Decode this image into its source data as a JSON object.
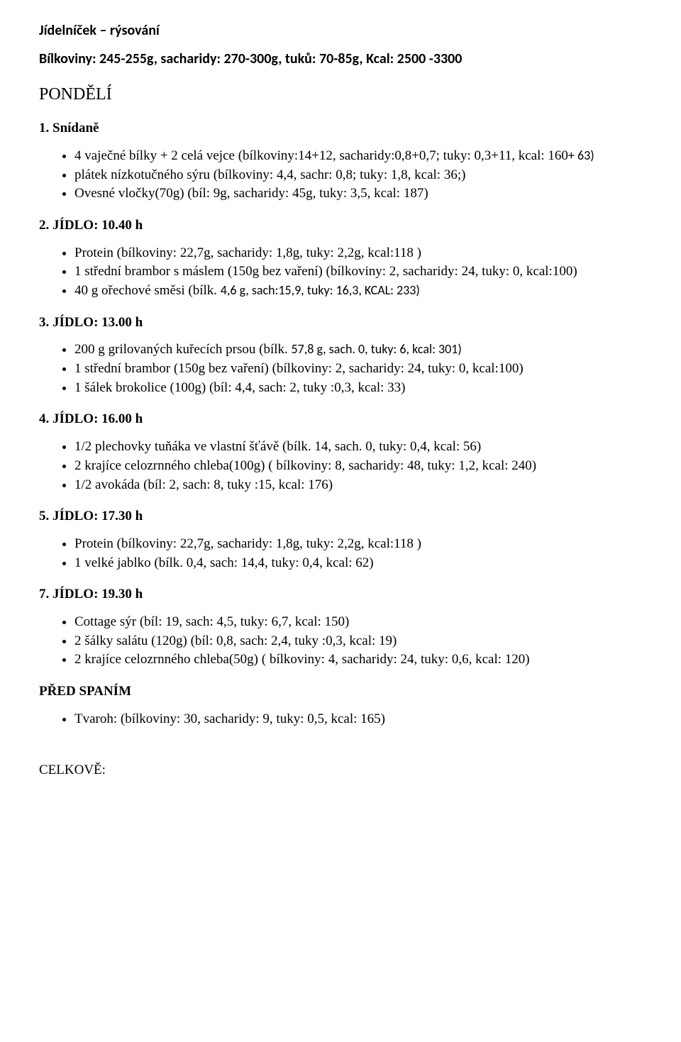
{
  "doc": {
    "title": "Jídelníček – rýsování",
    "subtitle": "Bílkoviny: 245-255g, sacharidy: 270-300g, tuků: 70-85g, Kcal: 2500 -3300",
    "day": "PONDĚLÍ",
    "total_label": "CELKOVĚ:"
  },
  "meals": [
    {
      "heading": "1. Snídaně",
      "items": [
        {
          "text_a": "4 vaječné bílky + 2 celá vejce (bílkoviny:14+12, sacharidy:0,8+0,7; tuky: 0,3+11, kcal: 160",
          "text_sans": "+ 63)"
        },
        {
          "text_a": "plátek nízkotučného sýru (bílkoviny: 4,4, sachr: 0,8; tuky: 1,8, kcal: 36;)"
        },
        {
          "text_a": "Ovesné vločky(70g) (bíl: 9g, sacharidy: 45g, tuky: 3,5, kcal: 187)"
        }
      ]
    },
    {
      "heading": "2. JÍDLO: 10.40 h",
      "items": [
        {
          "text_a": "Protein (bílkoviny: 22,7g, sacharidy: 1,8g, tuky: 2,2g, kcal:118 )"
        },
        {
          "text_a": "1 střední brambor s máslem (150g bez vaření) (bílkoviny: 2, sacharidy: 24, tuky: 0, kcal:100)"
        },
        {
          "text_a": "40 g ořechové směsi (bílk. ",
          "text_sans": "4,6 g, sach:15,9, tuky: 16,3, KCAL: 233)"
        }
      ]
    },
    {
      "heading": "3. JÍDLO: 13.00 h",
      "items": [
        {
          "text_a": "200 g grilovaných kuřecích prsou (bílk. ",
          "text_sans": "57,8 g, sach. 0, tuky: 6, kcal: 301)"
        },
        {
          "text_a": "1 střední brambor (150g bez vaření) (bílkoviny: 2, sacharidy: 24, tuky: 0, kcal:100)"
        },
        {
          "text_a": "1 šálek brokolice (100g) (bíl: 4,4, sach: 2, tuky :0,3, kcal: 33)"
        }
      ]
    },
    {
      "heading": "4. JÍDLO: 16.00 h",
      "items": [
        {
          "text_a": "1/2 plechovky tuňáka ve vlastní šťávě (bílk. 14, sach. 0, tuky: 0,4, kcal: 56)"
        },
        {
          "text_a": "2 krajíce celozrnného chleba(100g) ( bílkoviny: 8, sacharidy: 48, tuky: 1,2, kcal: 240)"
        },
        {
          "text_a": "1/2 avokáda (bíl: 2, sach: 8, tuky :15, kcal: 176)"
        }
      ]
    },
    {
      "heading": "5. JÍDLO: 17.30 h",
      "items": [
        {
          "text_a": "Protein (bílkoviny: 22,7g, sacharidy: 1,8g, tuky: 2,2g, kcal:118 )"
        },
        {
          "text_a": "1 velké jablko (bílk. 0,4, sach: 14,4, tuky: 0,4, kcal: 62)"
        }
      ]
    },
    {
      "heading": "7. JÍDLO: 19.30 h",
      "items": [
        {
          "text_a": "Cottage sýr (bíl: 19, sach: 4,5, tuky: 6,7, kcal: 150)"
        },
        {
          "text_a": "2 šálky salátu (120g) (bíl: 0,8, sach: 2,4, tuky :0,3, kcal: 19)"
        },
        {
          "text_a": "2 krajíce celozrnného chleba(50g) ( bílkoviny: 4, sacharidy: 24, tuky: 0,6, kcal: 120)"
        }
      ]
    }
  ],
  "pre_sleep": {
    "heading": "PŘED SPANÍM",
    "items": [
      {
        "text_a": "Tvaroh: (bílkoviny: 30, sacharidy: 9, tuky: 0,5, kcal: 165)"
      }
    ]
  }
}
